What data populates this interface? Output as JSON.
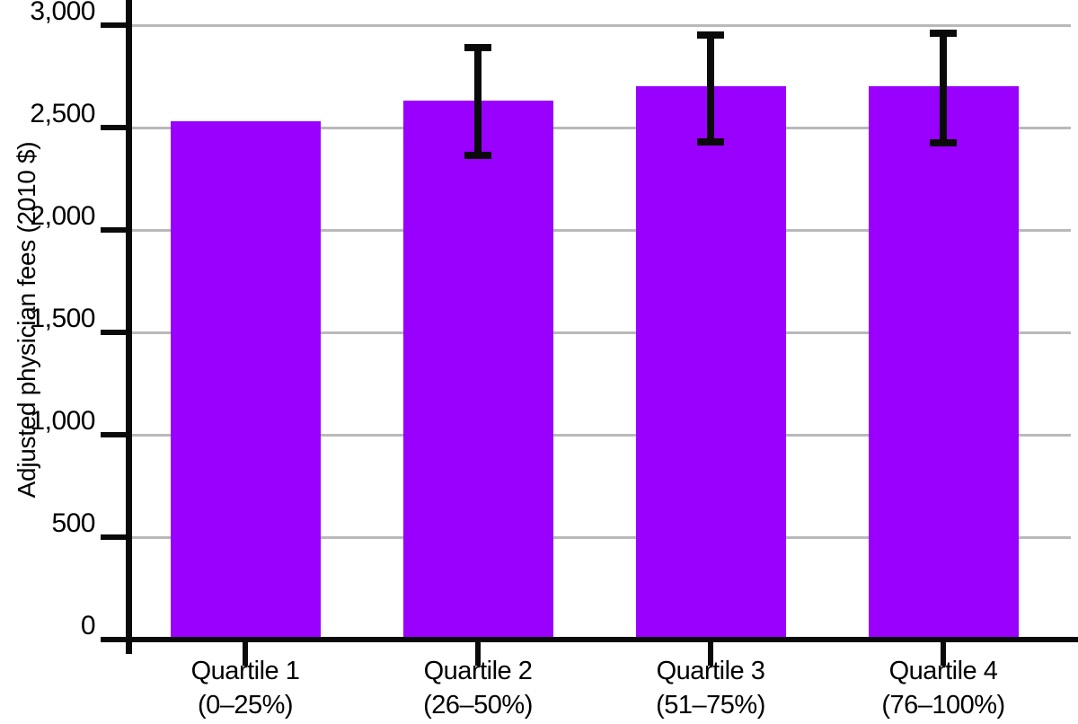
{
  "chart_data": {
    "type": "bar",
    "ylabel": "Adjusted physician fees (2010 $)",
    "xlabel": "",
    "ylim": [
      0,
      3000
    ],
    "grid": true,
    "legend": "none",
    "yticks": [
      {
        "value": 0,
        "label": "0"
      },
      {
        "value": 500,
        "label": "500"
      },
      {
        "value": 1000,
        "label": "1,000"
      },
      {
        "value": 1500,
        "label": "1,500"
      },
      {
        "value": 2000,
        "label": "2,000"
      },
      {
        "value": 2500,
        "label": "2,500"
      },
      {
        "value": 3000,
        "label": "3,000"
      }
    ],
    "categories": [
      {
        "line1": "Quartile 1",
        "line2": "(0–25%)"
      },
      {
        "line1": "Quartile 2",
        "line2": "(26–50%)"
      },
      {
        "line1": "Quartile 3",
        "line2": "(51–75%)"
      },
      {
        "line1": "Quartile 4",
        "line2": "(76–100%)"
      }
    ],
    "values": [
      2530,
      2630,
      2700,
      2700
    ],
    "error_bars": [
      null,
      {
        "low": 2365,
        "high": 2890
      },
      {
        "low": 2430,
        "high": 2950
      },
      {
        "low": 2425,
        "high": 2960
      }
    ],
    "colors": {
      "bar": "#9900FD",
      "error_bar": "#0a0a0a",
      "gridline": "#b9b9b9",
      "axis": "#0a0a0a",
      "text": "#000000",
      "background": "#ffffff"
    }
  }
}
